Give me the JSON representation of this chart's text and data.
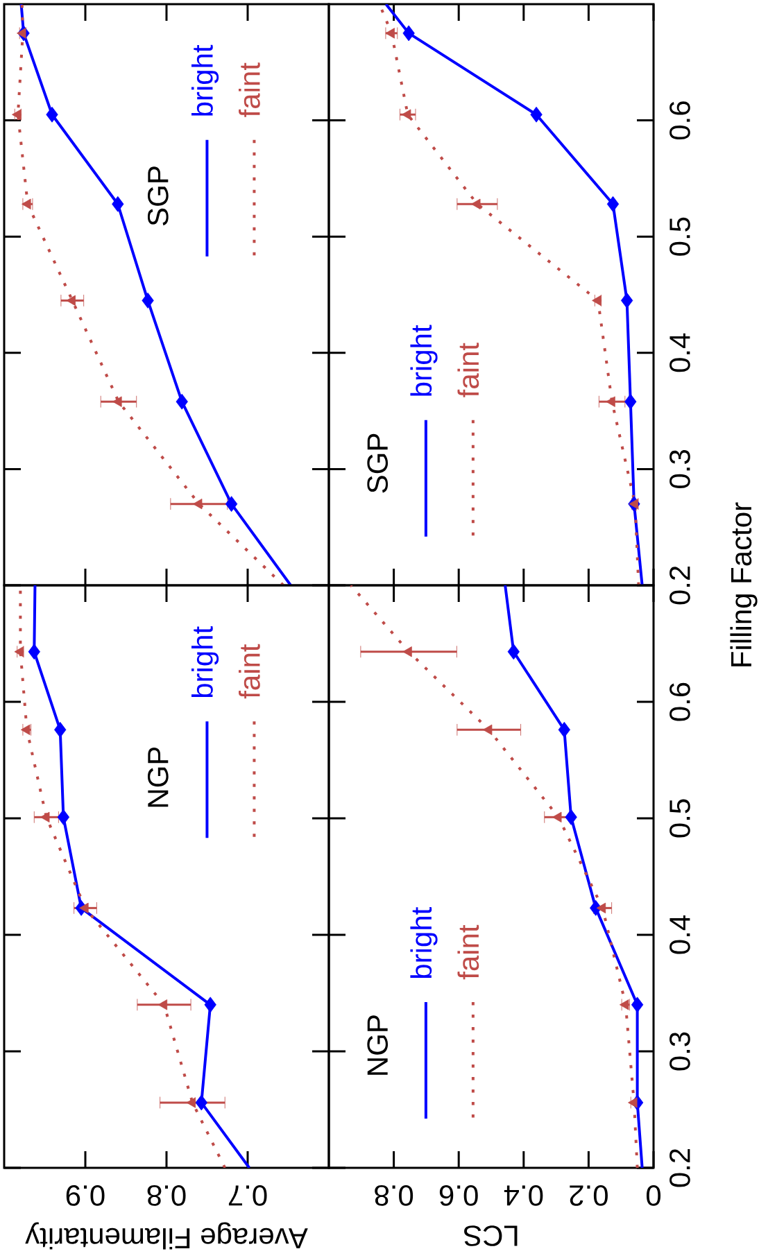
{
  "chart_data": [
    {
      "type": "line",
      "xlim": [
        1.0,
        0.6
      ],
      "xticks": [
        0.9,
        0.8,
        0.7
      ],
      "ylim": [
        0.2,
        0.7
      ],
      "yticks": [
        0.2,
        0.3,
        0.4,
        0.5,
        0.6
      ],
      "tick_labels": false,
      "legend": "top right",
      "annotations": [
        "SGP"
      ],
      "series": [
        {
          "name": "bright",
          "color": "#0000ff",
          "line_style": "solid",
          "marker": "none",
          "x": [
            0.647,
            0.72,
            0.781,
            0.823,
            0.86,
            0.941,
            0.976,
            0.979
          ],
          "values": [
            0.2,
            0.27,
            0.358,
            0.445,
            0.528,
            0.605,
            0.675,
            0.7
          ]
        },
        {
          "name": "faint",
          "color": "#bf4b48",
          "line_style": "dotted",
          "marker": "none",
          "x": [
            0.656,
            0.76,
            0.859,
            0.916,
            0.971,
            0.983,
            0.977,
            0.978
          ],
          "values": [
            0.2,
            0.27,
            0.358,
            0.445,
            0.528,
            0.605,
            0.675,
            0.7
          ]
        },
        {
          "type": "scatter",
          "color": "#0000ff",
          "marker": "diamond",
          "x": [
            0.72,
            0.781,
            0.823,
            0.86,
            0.941,
            0.976
          ],
          "values": [
            0.27,
            0.358,
            0.445,
            0.528,
            0.605,
            0.675
          ]
        },
        {
          "type": "scatter",
          "color": "#bf4b48",
          "marker": "triangle",
          "x": [
            0.76,
            0.859,
            0.916,
            0.971,
            0.983,
            0.977
          ],
          "values": [
            0.27,
            0.358,
            0.445,
            0.528,
            0.605,
            0.675
          ],
          "xerrors": [
            0.035,
            0.022,
            0.014,
            0.006,
            0.004,
            0.004
          ]
        }
      ]
    },
    {
      "type": "line",
      "xlim": [
        1.0,
        0
      ],
      "xticks": [
        0.8,
        0.6,
        0.4,
        0.2,
        0
      ],
      "ylim": [
        0.2,
        0.7
      ],
      "yticks": [
        0.2,
        0.3,
        0.4,
        0.5,
        0.6
      ],
      "tick_labels": "y",
      "legend": "bottom left",
      "annotations": [
        "SGP"
      ],
      "series": [
        {
          "name": "bright",
          "color": "#0000ff",
          "line_style": "solid",
          "marker": "none",
          "x": [
            0.035,
            0.06,
            0.071,
            0.082,
            0.125,
            0.361,
            0.754,
            0.824
          ],
          "values": [
            0.2,
            0.27,
            0.358,
            0.445,
            0.528,
            0.605,
            0.675,
            0.7
          ]
        },
        {
          "name": "faint",
          "color": "#bf4b48",
          "line_style": "dotted",
          "marker": "none",
          "x": [
            0.046,
            0.057,
            0.128,
            0.171,
            0.543,
            0.757,
            0.807,
            0.844
          ],
          "values": [
            0.2,
            0.27,
            0.358,
            0.445,
            0.528,
            0.605,
            0.675,
            0.7
          ]
        },
        {
          "type": "scatter",
          "color": "#0000ff",
          "marker": "diamond",
          "x": [
            0.06,
            0.071,
            0.082,
            0.125,
            0.361,
            0.754
          ],
          "values": [
            0.27,
            0.358,
            0.445,
            0.528,
            0.605,
            0.675
          ]
        },
        {
          "type": "scatter",
          "color": "#bf4b48",
          "marker": "triangle",
          "x": [
            0.057,
            0.128,
            0.171,
            0.543,
            0.757,
            0.807
          ],
          "values": [
            0.27,
            0.358,
            0.445,
            0.528,
            0.605,
            0.675
          ],
          "xerrors": [
            0.01,
            0.04,
            0.01,
            0.062,
            0.024,
            0.018
          ]
        }
      ]
    },
    {
      "type": "line",
      "xlim": [
        1.0,
        0.6
      ],
      "xticks": [
        0.9,
        0.8,
        0.7
      ],
      "ylim": [
        0.2,
        0.7
      ],
      "yticks": [
        0.2,
        0.3,
        0.4,
        0.5,
        0.6
      ],
      "tick_labels": "x",
      "xlabel": "Average Filamentarity",
      "legend": "top right",
      "annotations": [
        "NGP"
      ],
      "series": [
        {
          "name": "bright",
          "color": "#0000ff",
          "line_style": "solid",
          "marker": "none",
          "x": [
            0.698,
            0.757,
            0.746,
            0.905,
            0.927,
            0.931,
            0.963,
            0.962
          ],
          "values": [
            0.2,
            0.256,
            0.34,
            0.423,
            0.501,
            0.576,
            0.643,
            0.7
          ]
        },
        {
          "name": "faint",
          "color": "#bf4b48",
          "line_style": "dotted",
          "marker": "none",
          "x": [
            0.728,
            0.768,
            0.803,
            0.9,
            0.948,
            0.972,
            0.98,
            0.98
          ],
          "values": [
            0.2,
            0.256,
            0.34,
            0.423,
            0.501,
            0.576,
            0.643,
            0.7
          ]
        },
        {
          "type": "scatter",
          "color": "#0000ff",
          "marker": "diamond",
          "x": [
            0.757,
            0.746,
            0.905,
            0.927,
            0.931,
            0.963
          ],
          "values": [
            0.256,
            0.34,
            0.423,
            0.501,
            0.576,
            0.643
          ]
        },
        {
          "type": "scatter",
          "color": "#bf4b48",
          "marker": "triangle",
          "x": [
            0.768,
            0.803,
            0.9,
            0.948,
            0.972,
            0.98
          ],
          "values": [
            0.256,
            0.34,
            0.423,
            0.501,
            0.576,
            0.643
          ],
          "xerrors": [
            0.04,
            0.033,
            0.014,
            0.015,
            0.005,
            0.004
          ]
        }
      ]
    },
    {
      "type": "line",
      "xlim": [
        1.0,
        0
      ],
      "xticks": [
        0.8,
        0.6,
        0.4,
        0.2,
        0
      ],
      "ylim": [
        0.2,
        0.7
      ],
      "yticks": [
        0.2,
        0.3,
        0.4,
        0.5,
        0.6
      ],
      "xlabel": "LCS",
      "ylabel": "Filling Factor",
      "legend": "bottom left",
      "annotations": [
        "NGP"
      ],
      "series": [
        {
          "name": "bright",
          "color": "#0000ff",
          "line_style": "solid",
          "marker": "none",
          "x": [
            0.035,
            0.05,
            0.05,
            0.178,
            0.254,
            0.275,
            0.431,
            0.457
          ],
          "values": [
            0.2,
            0.256,
            0.34,
            0.423,
            0.501,
            0.576,
            0.643,
            0.7
          ]
        },
        {
          "name": "faint",
          "color": "#bf4b48",
          "line_style": "dotted",
          "marker": "none",
          "x": [
            0.05,
            0.06,
            0.086,
            0.157,
            0.293,
            0.507,
            0.754,
            0.932
          ],
          "values": [
            0.2,
            0.256,
            0.34,
            0.423,
            0.501,
            0.576,
            0.643,
            0.7
          ]
        },
        {
          "type": "scatter",
          "color": "#0000ff",
          "marker": "diamond",
          "x": [
            0.05,
            0.05,
            0.178,
            0.254,
            0.275,
            0.431
          ],
          "values": [
            0.256,
            0.34,
            0.423,
            0.501,
            0.576,
            0.643
          ]
        },
        {
          "type": "scatter",
          "color": "#bf4b48",
          "marker": "triangle",
          "x": [
            0.06,
            0.086,
            0.157,
            0.293,
            0.507,
            0.754
          ],
          "values": [
            0.256,
            0.34,
            0.423,
            0.501,
            0.576,
            0.643
          ],
          "xerrors": [
            0.01,
            0.012,
            0.028,
            0.043,
            0.098,
            0.148
          ]
        }
      ]
    }
  ]
}
